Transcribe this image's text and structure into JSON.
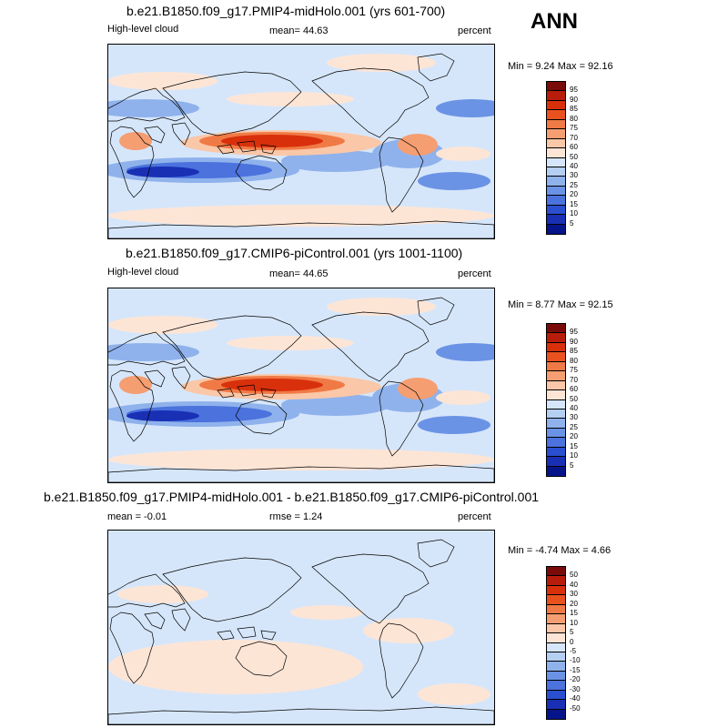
{
  "season": "ANN",
  "panels": [
    {
      "title": "b.e21.B1850.f09_g17.PMIP4-midHolo.001 (yrs 601-700)",
      "left_label": "High-level cloud",
      "center_label": "mean=  44.63",
      "units": "percent",
      "minmax": "Min =   9.24 Max =  92.16",
      "colorbar": {
        "labels": [
          "95",
          "90",
          "85",
          "80",
          "75",
          "70",
          "60",
          "50",
          "40",
          "30",
          "25",
          "20",
          "15",
          "10",
          "5"
        ],
        "colors": [
          "#7a0b0b",
          "#b81d0b",
          "#d9300c",
          "#e9521f",
          "#f07a45",
          "#f59e72",
          "#fac7a8",
          "#fde5d6",
          "#d6e6fa",
          "#b5cff3",
          "#8fb2ec",
          "#6b93e5",
          "#4b72dd",
          "#2a4fcf",
          "#1930b5",
          "#06148a"
        ]
      },
      "anomaly_scale": false
    },
    {
      "title": "b.e21.B1850.f09_g17.CMIP6-piControl.001 (yrs 1001-1100)",
      "left_label": "High-level cloud",
      "center_label": "mean=  44.65",
      "units": "percent",
      "minmax": "Min =   8.77 Max =  92.15",
      "colorbar": {
        "labels": [
          "95",
          "90",
          "85",
          "80",
          "75",
          "70",
          "60",
          "50",
          "40",
          "30",
          "25",
          "20",
          "15",
          "10",
          "5"
        ],
        "colors": [
          "#7a0b0b",
          "#b81d0b",
          "#d9300c",
          "#e9521f",
          "#f07a45",
          "#f59e72",
          "#fac7a8",
          "#fde5d6",
          "#d6e6fa",
          "#b5cff3",
          "#8fb2ec",
          "#6b93e5",
          "#4b72dd",
          "#2a4fcf",
          "#1930b5",
          "#06148a"
        ]
      },
      "anomaly_scale": false
    },
    {
      "title": "b.e21.B1850.f09_g17.PMIP4-midHolo.001 - b.e21.B1850.f09_g17.CMIP6-piControl.001",
      "left_label": "mean =  -0.01",
      "center_label": "rmse =   1.24",
      "units": "percent",
      "minmax": "Min =  -4.74 Max =   4.66",
      "colorbar": {
        "labels": [
          "50",
          "40",
          "30",
          "20",
          "15",
          "10",
          "5",
          "0",
          "-5",
          "-10",
          "-15",
          "-20",
          "-30",
          "-40",
          "-50"
        ],
        "colors": [
          "#7a0b0b",
          "#b81d0b",
          "#d9300c",
          "#e9521f",
          "#f07a45",
          "#f59e72",
          "#fac7a8",
          "#fde5d6",
          "#d6e6fa",
          "#b5cff3",
          "#8fb2ec",
          "#6b93e5",
          "#4b72dd",
          "#2a4fcf",
          "#1930b5",
          "#06148a"
        ]
      },
      "anomaly_scale": true
    }
  ]
}
